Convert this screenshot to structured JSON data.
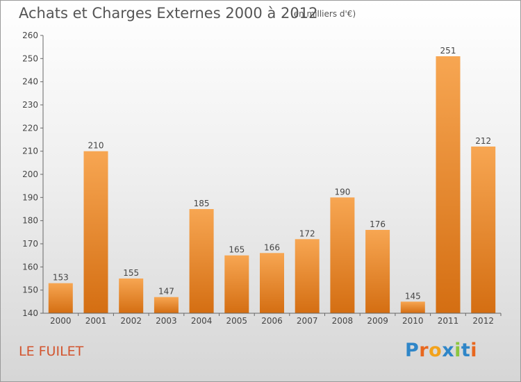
{
  "header": {
    "title": "Achats et Charges Externes 2000 à 2012",
    "subtitle": "(en milliers d'€)"
  },
  "footer": {
    "commune": "LE FUILET",
    "logo_text": "Proxiti",
    "logo_letter_colors": [
      "#2f86c8",
      "#e8671e",
      "#f2a21b",
      "#2f86c8",
      "#8cc63f",
      "#2f86c8",
      "#e8671e"
    ]
  },
  "colors": {
    "bar_top": "#f7a652",
    "bar_bottom": "#d46e12",
    "axis": "#666666",
    "text": "#444444"
  },
  "chart_data": {
    "type": "bar",
    "title": "Achats et Charges Externes 2000 à 2012",
    "xlabel": "",
    "ylabel": "",
    "categories": [
      "2000",
      "2001",
      "2002",
      "2003",
      "2004",
      "2005",
      "2006",
      "2007",
      "2008",
      "2009",
      "2010",
      "2011",
      "2012"
    ],
    "values": [
      153,
      210,
      155,
      147,
      185,
      165,
      166,
      172,
      190,
      176,
      145,
      251,
      212
    ],
    "ylim": [
      140,
      260
    ],
    "yticks": [
      140,
      150,
      160,
      170,
      180,
      190,
      200,
      210,
      220,
      230,
      240,
      250,
      260
    ],
    "grid": false,
    "legend": "none",
    "data_labels": true
  }
}
